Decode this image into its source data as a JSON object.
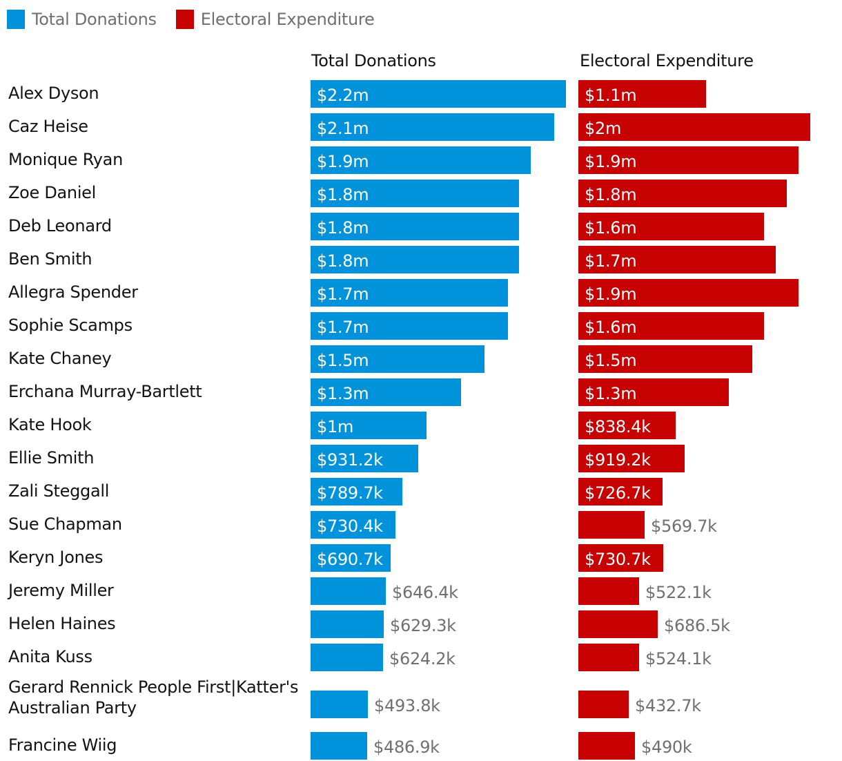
{
  "legend": [
    {
      "label": "Total Donations",
      "color": "#0093dc"
    },
    {
      "label": "Electoral Expenditure",
      "color": "#c70000"
    }
  ],
  "chart_data": {
    "type": "bar",
    "orientation": "horizontal",
    "title": "",
    "xlabel": "",
    "ylabel": "",
    "units": "AUD",
    "grid": false,
    "legend_position": "top-left",
    "categories": [
      "Alex Dyson",
      "Caz Heise",
      "Monique Ryan",
      "Zoe Daniel",
      "Deb Leonard",
      "Ben Smith",
      "Allegra Spender",
      "Sophie Scamps",
      "Kate Chaney",
      "Erchana Murray-Bartlett",
      "Kate Hook",
      "Ellie Smith",
      "Zali Steggall",
      "Sue Chapman",
      "Keryn Jones",
      "Jeremy Miller",
      "Helen Haines",
      "Anita Kuss",
      "Gerard Rennick People First|Katter's Australian Party",
      "Francine Wiig"
    ],
    "series": [
      {
        "name": "Total Donations",
        "color": "#0093dc",
        "values": [
          2200000,
          2100000,
          1900000,
          1800000,
          1800000,
          1800000,
          1700000,
          1700000,
          1500000,
          1300000,
          1000000,
          931200,
          789700,
          730400,
          690700,
          646400,
          629300,
          624200,
          493800,
          486900
        ],
        "labels": [
          "$2.2m",
          "$2.1m",
          "$1.9m",
          "$1.8m",
          "$1.8m",
          "$1.8m",
          "$1.7m",
          "$1.7m",
          "$1.5m",
          "$1.3m",
          "$1m",
          "$931.2k",
          "$789.7k",
          "$730.4k",
          "$690.7k",
          "$646.4k",
          "$629.3k",
          "$624.2k",
          "$493.8k",
          "$486.9k"
        ]
      },
      {
        "name": "Electoral Expenditure",
        "color": "#c70000",
        "values": [
          1100000,
          2000000,
          1900000,
          1800000,
          1600000,
          1700000,
          1900000,
          1600000,
          1500000,
          1300000,
          838400,
          919200,
          726700,
          569700,
          730700,
          522100,
          686500,
          524100,
          432700,
          490000
        ],
        "labels": [
          "$1.1m",
          "$2m",
          "$1.9m",
          "$1.8m",
          "$1.6m",
          "$1.7m",
          "$1.9m",
          "$1.6m",
          "$1.5m",
          "$1.3m",
          "$838.4k",
          "$919.2k",
          "$726.7k",
          "$569.7k",
          "$730.7k",
          "$522.1k",
          "$686.5k",
          "$524.1k",
          "$432.7k",
          "$490k"
        ]
      }
    ]
  }
}
